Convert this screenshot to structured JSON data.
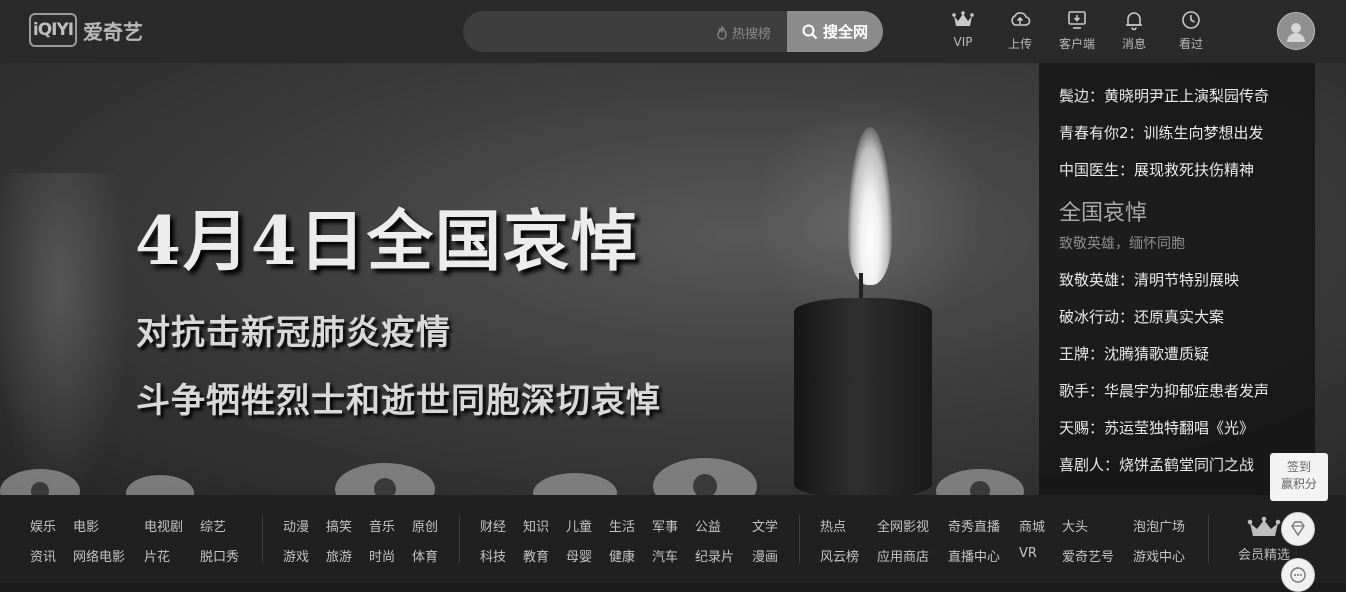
{
  "header": {
    "logo_mark": "iQIYI",
    "logo_text": "爱奇艺",
    "search_placeholder": "",
    "hot_label": "热搜榜",
    "search_button": "搜全网",
    "nav": [
      {
        "label": "VIP",
        "icon": "crown-icon"
      },
      {
        "label": "上传",
        "icon": "upload-icon"
      },
      {
        "label": "客户端",
        "icon": "download-client-icon"
      },
      {
        "label": "消息",
        "icon": "bell-icon"
      },
      {
        "label": "看过",
        "icon": "history-icon"
      }
    ]
  },
  "banner": {
    "title": "4月4日全国哀悼",
    "subtitle_1": "对抗击新冠肺炎疫情",
    "subtitle_2": "斗争牺牲烈士和逝世同胞深切哀悼"
  },
  "side_list": {
    "items_top": [
      "鬓边：黄晓明尹正上演梨园传奇",
      "青春有你2：训练生向梦想出发",
      "中国医生：展现救死扶伤精神"
    ],
    "featured_title": "全国哀悼",
    "featured_sub": "致敬英雄，缅怀同胞",
    "items_bottom": [
      "致敬英雄：清明节特别展映",
      "破冰行动：还原真实大案",
      "王牌：沈腾猜歌遭质疑",
      "歌手：华晨宇为抑郁症患者发声",
      "天赐：苏运莹独特翻唱《光》",
      "喜剧人：烧饼孟鹤堂同门之战"
    ]
  },
  "channels": {
    "group1_row1": [
      "娱乐",
      "电影",
      "电视剧",
      "综艺"
    ],
    "group1_row2": [
      "资讯",
      "网络电影",
      "片花",
      "脱口秀"
    ],
    "group2_row1": [
      "动漫",
      "搞笑",
      "音乐",
      "原创"
    ],
    "group2_row2": [
      "游戏",
      "旅游",
      "时尚",
      "体育"
    ],
    "group3_row1": [
      "财经",
      "知识",
      "儿童",
      "生活",
      "军事",
      "公益",
      "文学"
    ],
    "group3_row2": [
      "科技",
      "教育",
      "母婴",
      "健康",
      "汽车",
      "纪录片",
      "漫画"
    ],
    "group4_row1": [
      "热点",
      "全网影视",
      "奇秀直播",
      "商城",
      "大头",
      "泡泡广场"
    ],
    "group4_row2": [
      "风云榜",
      "应用商店",
      "直播中心",
      "VR",
      "爱奇艺号",
      "游戏中心"
    ],
    "vip_label": "会员精选"
  },
  "float": {
    "tooltip_line1": "签到",
    "tooltip_line2": "赢积分"
  },
  "colors": {
    "header_bg": "#2a2a2a",
    "search_button_bg": "#8c8c8c",
    "channel_bg": "#202020"
  }
}
